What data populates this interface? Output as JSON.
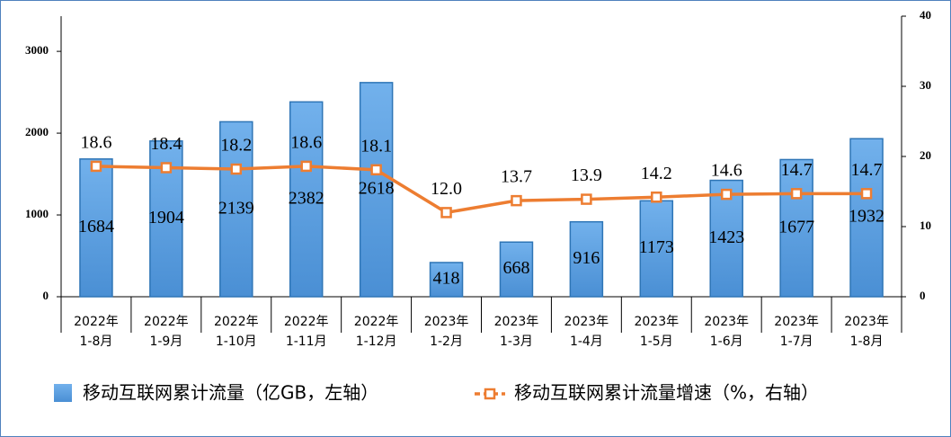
{
  "chart_data": {
    "type": "bar-line",
    "categories": [
      [
        "2022年",
        "1-8月"
      ],
      [
        "2022年",
        "1-9月"
      ],
      [
        "2022年",
        "1-10月"
      ],
      [
        "2022年",
        "1-11月"
      ],
      [
        "2022年",
        "1-12月"
      ],
      [
        "2023年",
        "1-2月"
      ],
      [
        "2023年",
        "1-3月"
      ],
      [
        "2023年",
        "1-4月"
      ],
      [
        "2023年",
        "1-5月"
      ],
      [
        "2023年",
        "1-6月"
      ],
      [
        "2023年",
        "1-7月"
      ],
      [
        "2023年",
        "1-8月"
      ]
    ],
    "series": [
      {
        "name": "移动互联网累计流量（亿GB，左轴）",
        "color": "#5b9bd5",
        "type": "bar",
        "values": [
          1684,
          1904,
          2139,
          2382,
          2618,
          418,
          668,
          916,
          1173,
          1423,
          1677,
          1932
        ]
      },
      {
        "name": "移动互联网累计流量增速（%，右轴）",
        "color": "#ed7d31",
        "type": "line",
        "axis": "y2",
        "values": [
          18.6,
          18.4,
          18.2,
          18.6,
          18.1,
          12.0,
          13.7,
          13.9,
          14.2,
          14.6,
          14.7,
          14.7
        ],
        "value_labels": [
          "18.6",
          "18.4",
          "18.2",
          "18.6",
          "18.1",
          "12.0",
          "13.7",
          "13.9",
          "14.2",
          "14.6",
          "14.7",
          "14.7"
        ]
      }
    ],
    "ylim": [
      0,
      3430
    ],
    "yticks": [
      0,
      1000,
      2000,
      3000
    ],
    "y2lim": [
      0,
      40
    ],
    "y2ticks": [
      0,
      10,
      20,
      30,
      40
    ]
  }
}
